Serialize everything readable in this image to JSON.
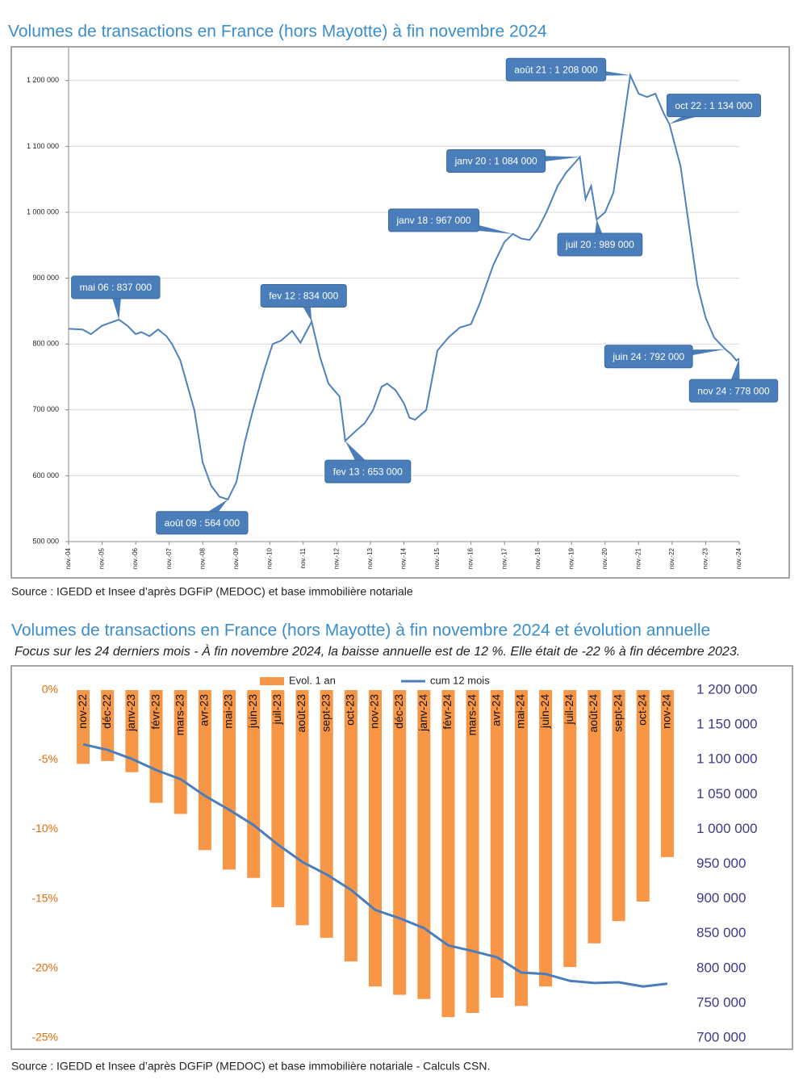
{
  "chart_data": [
    {
      "type": "line",
      "title": "Volumes de transactions en France (hors Mayotte) à fin novembre 2024",
      "source": "Source : IGEDD et Insee d’après DGFiP (MEDOC) et base immobilière notariale",
      "color": "#4f81bd",
      "grid": true,
      "xlim": [
        2004.833,
        2024.833
      ],
      "ylim": [
        500000,
        1250000
      ],
      "xticks": [
        {
          "value": 2004.833,
          "label": "nov.-04"
        },
        {
          "value": 2005.833,
          "label": "nov.-05"
        },
        {
          "value": 2006.833,
          "label": "nov.-06"
        },
        {
          "value": 2007.833,
          "label": "nov.-07"
        },
        {
          "value": 2008.833,
          "label": "nov.-08"
        },
        {
          "value": 2009.833,
          "label": "nov.-09"
        },
        {
          "value": 2010.833,
          "label": "nov.-10"
        },
        {
          "value": 2011.833,
          "label": "nov.-11"
        },
        {
          "value": 2012.833,
          "label": "nov.-12"
        },
        {
          "value": 2013.833,
          "label": "nov.-13"
        },
        {
          "value": 2014.833,
          "label": "nov.-14"
        },
        {
          "value": 2015.833,
          "label": "nov.-15"
        },
        {
          "value": 2016.833,
          "label": "nov.-16"
        },
        {
          "value": 2017.833,
          "label": "nov.-17"
        },
        {
          "value": 2018.833,
          "label": "nov.-18"
        },
        {
          "value": 2019.833,
          "label": "nov.-19"
        },
        {
          "value": 2020.833,
          "label": "nov.-20"
        },
        {
          "value": 2021.833,
          "label": "nov.-21"
        },
        {
          "value": 2022.833,
          "label": "nov.-22"
        },
        {
          "value": 2023.833,
          "label": "nov.-23"
        },
        {
          "value": 2024.833,
          "label": "nov.-24"
        }
      ],
      "yticks": [
        {
          "value": 500000,
          "label": "500 000"
        },
        {
          "value": 600000,
          "label": "600 000"
        },
        {
          "value": 700000,
          "label": "700 000"
        },
        {
          "value": 800000,
          "label": "800 000"
        },
        {
          "value": 900000,
          "label": "900 000"
        },
        {
          "value": 1000000,
          "label": "1 000 000"
        },
        {
          "value": 1100000,
          "label": "1 100 000"
        },
        {
          "value": 1200000,
          "label": "1 200 000"
        }
      ],
      "x": [
        2004.833,
        2005.25,
        2005.5,
        2005.833,
        2006.333,
        2006.583,
        2006.833,
        2007.0,
        2007.25,
        2007.5,
        2007.75,
        2007.917,
        2008.167,
        2008.333,
        2008.583,
        2008.833,
        2009.083,
        2009.333,
        2009.583,
        2009.833,
        2010.083,
        2010.333,
        2010.667,
        2010.917,
        2011.167,
        2011.5,
        2011.75,
        2012.083,
        2012.333,
        2012.583,
        2012.917,
        2013.083,
        2013.333,
        2013.667,
        2013.917,
        2014.167,
        2014.333,
        2014.583,
        2014.833,
        2015.0,
        2015.167,
        2015.5,
        2015.833,
        2016.167,
        2016.5,
        2016.833,
        2017.083,
        2017.5,
        2017.833,
        2018.083,
        2018.333,
        2018.583,
        2018.833,
        2019.083,
        2019.417,
        2019.667,
        2020.083,
        2020.25,
        2020.417,
        2020.583,
        2020.833,
        2021.083,
        2021.333,
        2021.583,
        2021.833,
        2022.083,
        2022.333,
        2022.583,
        2022.75,
        2023.083,
        2023.333,
        2023.583,
        2023.833,
        2024.083,
        2024.417,
        2024.583,
        2024.75,
        2024.833
      ],
      "values": [
        823000,
        822000,
        815000,
        828000,
        837000,
        828000,
        815000,
        818000,
        812000,
        822000,
        812000,
        800000,
        775000,
        745000,
        700000,
        620000,
        585000,
        568000,
        564000,
        590000,
        650000,
        700000,
        760000,
        800000,
        805000,
        820000,
        802000,
        834000,
        780000,
        740000,
        720000,
        653000,
        665000,
        680000,
        700000,
        735000,
        740000,
        730000,
        710000,
        688000,
        685000,
        700000,
        790000,
        810000,
        825000,
        830000,
        860000,
        920000,
        955000,
        967000,
        960000,
        958000,
        975000,
        1000000,
        1040000,
        1060000,
        1084000,
        1020000,
        1040000,
        989000,
        1000000,
        1030000,
        1120000,
        1208000,
        1180000,
        1175000,
        1180000,
        1150000,
        1134000,
        1070000,
        980000,
        890000,
        840000,
        810000,
        792000,
        785000,
        775000,
        778000
      ],
      "annotations": [
        {
          "text": "mai 06 : 837 000",
          "x": 2006.333,
          "y": 837000
        },
        {
          "text": "août 09 : 564 000",
          "x": 2009.583,
          "y": 564000
        },
        {
          "text": "fev 12 : 834 000",
          "x": 2012.083,
          "y": 834000
        },
        {
          "text": "fev 13 : 653 000",
          "x": 2013.083,
          "y": 653000
        },
        {
          "text": "janv  18 : 967 000",
          "x": 2018.083,
          "y": 967000
        },
        {
          "text": "janv 20 : 1 084 000",
          "x": 2020.083,
          "y": 1084000
        },
        {
          "text": "juil 20 : 989 000",
          "x": 2020.583,
          "y": 989000
        },
        {
          "text": "août 21 : 1 208 000",
          "x": 2021.583,
          "y": 1208000
        },
        {
          "text": "oct 22 : 1 134 000",
          "x": 2022.75,
          "y": 1134000
        },
        {
          "text": "juin 24 : 792 000",
          "x": 2024.417,
          "y": 792000
        },
        {
          "text": "nov 24 : 778 000",
          "x": 2024.833,
          "y": 778000
        }
      ]
    },
    {
      "type": "bar",
      "title": "Volumes de transactions en France (hors Mayotte) à fin novembre 2024 et évolution annuelle",
      "subtitle": "Focus sur les 24 derniers mois - À fin novembre 2024, la baisse annuelle est de 12 %. Elle était de -22 % à fin décembre 2023.",
      "source": "Source : IGEDD et Insee d’après DGFiP (MEDOC) et base immobilière notariale - Calculs CSN.",
      "legend": "top",
      "categories": [
        "nov-22",
        "déc-22",
        "janv-23",
        "févr-23",
        "mars-23",
        "avr-23",
        "mai-23",
        "juin-23",
        "juil-23",
        "août-23",
        "sept-23",
        "oct-23",
        "nov-23",
        "déc-23",
        "janv-24",
        "févr-24",
        "mars-24",
        "avr-24",
        "mai-24",
        "juin-24",
        "juil-24",
        "août-24",
        "sept-24",
        "oct-24",
        "nov-24"
      ],
      "ylim": [
        -25,
        0
      ],
      "yticks": [
        {
          "value": 0,
          "label": "0%"
        },
        {
          "value": -5,
          "label": "-5%"
        },
        {
          "value": -10,
          "label": "-10%"
        },
        {
          "value": -15,
          "label": "-15%"
        },
        {
          "value": -20,
          "label": "-20%"
        },
        {
          "value": -25,
          "label": "-25%"
        }
      ],
      "y2lim": [
        700000,
        1200000
      ],
      "y2ticks": [
        {
          "value": 1200000,
          "label": "1 200 000"
        },
        {
          "value": 1150000,
          "label": "1 150 000"
        },
        {
          "value": 1100000,
          "label": "1 100 000"
        },
        {
          "value": 1050000,
          "label": "1 050 000"
        },
        {
          "value": 1000000,
          "label": "1 000 000"
        },
        {
          "value": 950000,
          "label": "950 000"
        },
        {
          "value": 900000,
          "label": "900 000"
        },
        {
          "value": 850000,
          "label": "850 000"
        },
        {
          "value": 800000,
          "label": "800 000"
        },
        {
          "value": 750000,
          "label": "750 000"
        },
        {
          "value": 700000,
          "label": "700 000"
        }
      ],
      "series": [
        {
          "name": "Evol. 1 an",
          "type": "bar",
          "color": "#f79646",
          "values": [
            -5.3,
            -5.1,
            -5.9,
            -8.1,
            -8.9,
            -11.5,
            -12.9,
            -13.5,
            -15.6,
            -16.9,
            -17.8,
            -19.5,
            -21.3,
            -21.9,
            -22.2,
            -23.5,
            -23.2,
            -22.1,
            -22.7,
            -21.3,
            -19.9,
            -18.2,
            -16.6,
            -15.2,
            -12
          ]
        },
        {
          "name": "cum 12 mois",
          "type": "line",
          "axis": "y2",
          "color": "#4a7ebb",
          "values": [
            1122000,
            1114000,
            1101000,
            1085000,
            1072000,
            1048000,
            1028000,
            1006000,
            978000,
            953000,
            935000,
            913000,
            884000,
            872000,
            858000,
            833000,
            825000,
            816000,
            794000,
            792000,
            782000,
            779000,
            780000,
            774000,
            778000
          ]
        }
      ]
    }
  ]
}
